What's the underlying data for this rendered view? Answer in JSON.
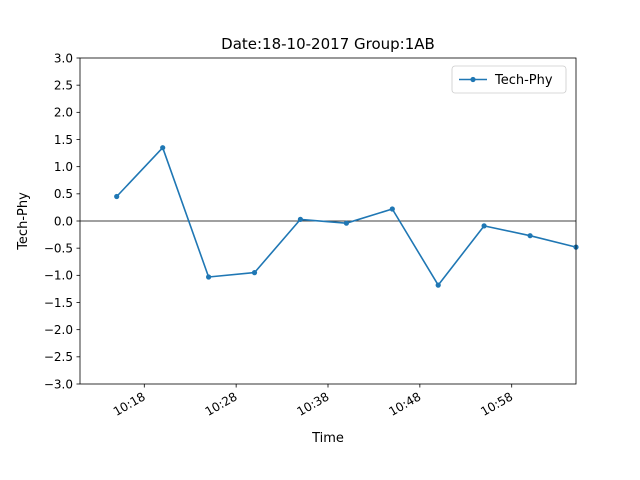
{
  "chart_data": {
    "type": "line",
    "title": "Date:18-10-2017 Group:1AB",
    "xlabel": "Time",
    "ylabel": "Tech-Phy",
    "ylim": [
      -3.0,
      3.0
    ],
    "yticks": [
      "−3.0",
      "−2.5",
      "−2.0",
      "−1.5",
      "−1.0",
      "−0.5",
      "0.0",
      "0.5",
      "1.0",
      "1.5",
      "2.0",
      "2.5",
      "3.0"
    ],
    "xticks": [
      "10:18",
      "10:28",
      "10:38",
      "10:48",
      "10:58"
    ],
    "xlim": [
      "10:11",
      "10:65"
    ],
    "reference_line_y": 0,
    "grid": false,
    "legend_position": "top-right",
    "series": [
      {
        "name": "Tech-Phy",
        "color": "#1f77b4",
        "marker": "circle",
        "x": [
          "10:15",
          "10:20",
          "10:25",
          "10:30",
          "10:35",
          "10:40",
          "10:45",
          "10:50",
          "10:55",
          "11:00",
          "11:05"
        ],
        "y": [
          0.45,
          1.35,
          -1.03,
          -0.95,
          0.03,
          -0.04,
          0.22,
          -1.18,
          -0.09,
          -0.27,
          -0.48
        ]
      }
    ]
  }
}
